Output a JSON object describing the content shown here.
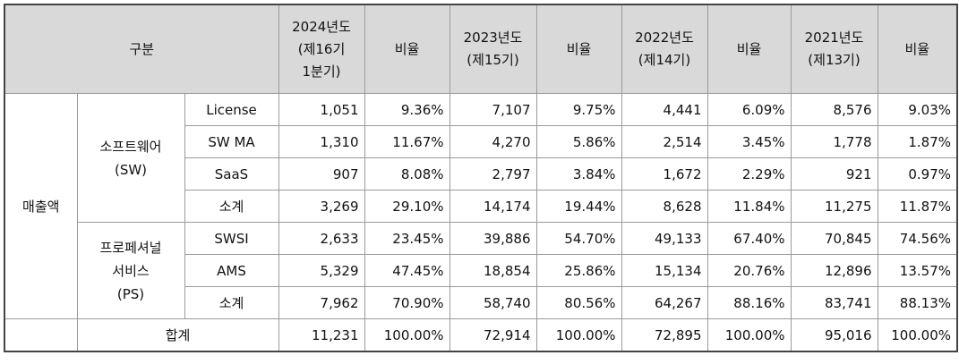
{
  "header": {
    "category": "구분",
    "years": [
      {
        "lines": [
          "2024년도",
          "(제16기",
          "1분기)"
        ],
        "ratio": "비율"
      },
      {
        "lines": [
          "2023년도",
          "(제15기)"
        ],
        "ratio": "비율"
      },
      {
        "lines": [
          "2022년도",
          "(제14기)"
        ],
        "ratio": "비율"
      },
      {
        "lines": [
          "2021년도",
          "(제13기)"
        ],
        "ratio": "비율"
      }
    ]
  },
  "group_revenue": "매출액",
  "software": {
    "lines": [
      "소프트웨어",
      "(SW)"
    ],
    "rows": [
      {
        "label": "License",
        "values": [
          "1,051",
          "9.36%",
          "7,107",
          "9.75%",
          "4,441",
          "6.09%",
          "8,576",
          "9.03%"
        ]
      },
      {
        "label": "SW MA",
        "values": [
          "1,310",
          "11.67%",
          "4,270",
          "5.86%",
          "2,514",
          "3.45%",
          "1,778",
          "1.87%"
        ]
      },
      {
        "label": "SaaS",
        "values": [
          "907",
          "8.08%",
          "2,797",
          "3.84%",
          "1,672",
          "2.29%",
          "921",
          "0.97%"
        ]
      },
      {
        "label": "소계",
        "values": [
          "3,269",
          "29.10%",
          "14,174",
          "19.44%",
          "8,628",
          "11.84%",
          "11,275",
          "11.87%"
        ]
      }
    ]
  },
  "professional": {
    "lines": [
      "프로페셔널",
      "서비스",
      "(PS)"
    ],
    "rows": [
      {
        "label": "SWSI",
        "values": [
          "2,633",
          "23.45%",
          "39,886",
          "54.70%",
          "49,133",
          "67.40%",
          "70,845",
          "74.56%"
        ]
      },
      {
        "label": "AMS",
        "values": [
          "5,329",
          "47.45%",
          "18,854",
          "25.86%",
          "15,134",
          "20.76%",
          "12,896",
          "13.57%"
        ]
      },
      {
        "label": "소계",
        "values": [
          "7,962",
          "70.90%",
          "58,740",
          "80.56%",
          "64,267",
          "88.16%",
          "83,741",
          "88.13%"
        ]
      }
    ]
  },
  "total": {
    "label": "합계",
    "values": [
      "11,231",
      "100.00%",
      "72,914",
      "100.00%",
      "72,895",
      "100.00%",
      "95,016",
      "100.00%"
    ]
  }
}
